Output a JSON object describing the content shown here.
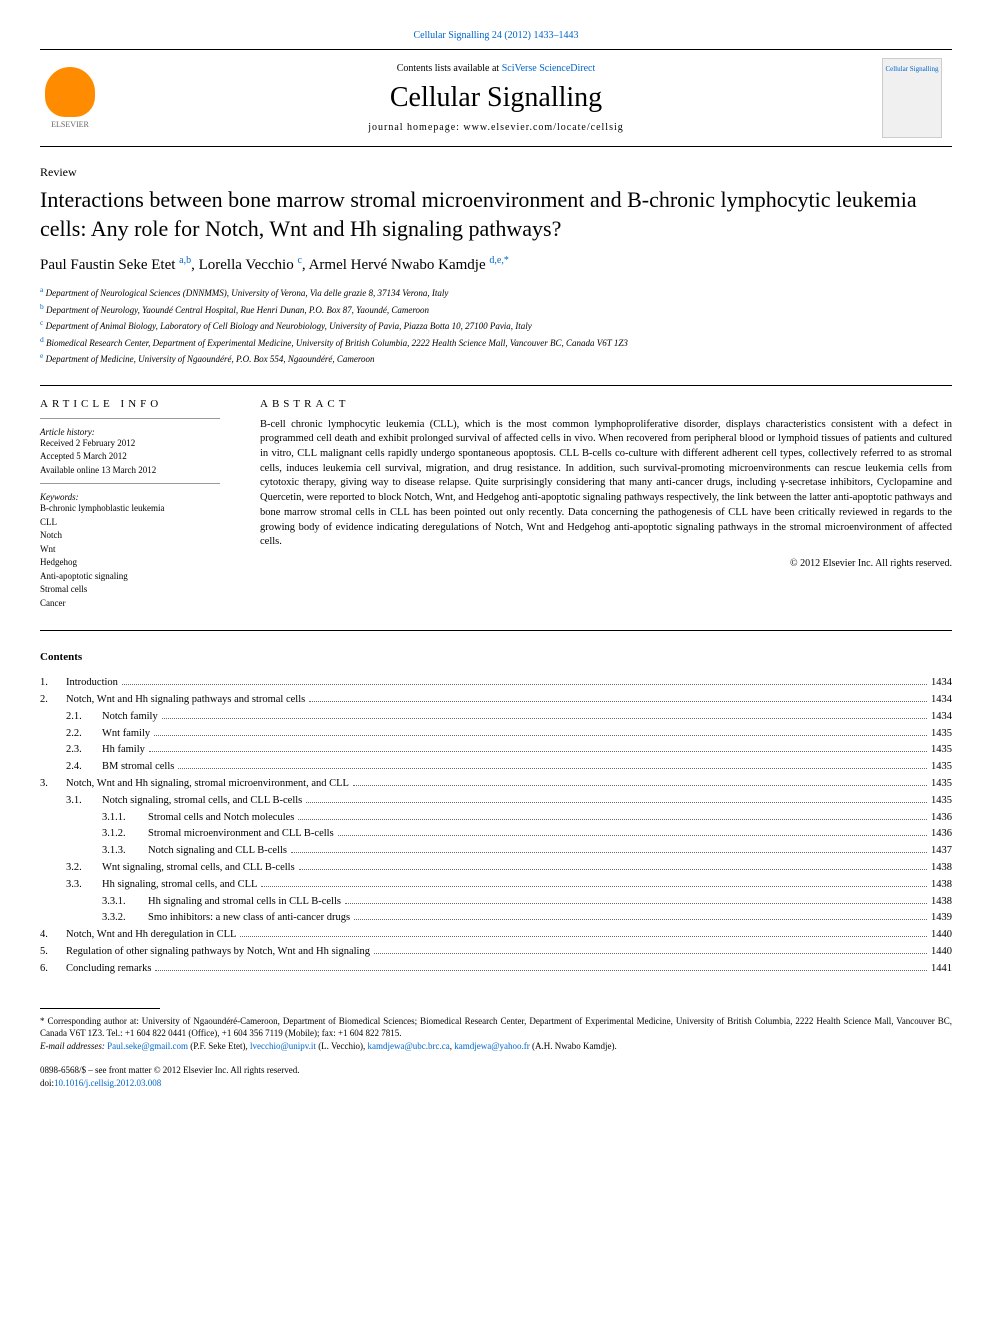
{
  "journal_ref": {
    "prefix": "Cellular Signalling 24 (2012) 1433–1443",
    "link_label": "Cellular Signalling"
  },
  "header": {
    "contents_prefix": "Contents lists available at ",
    "contents_link": "SciVerse ScienceDirect",
    "journal_name": "Cellular Signalling",
    "homepage": "journal homepage: www.elsevier.com/locate/cellsig",
    "elsevier_label": "ELSEVIER",
    "cover_label": "Cellular Signalling",
    "colors": {
      "link": "#0066cc",
      "text": "#000000",
      "elsevier_orange": "#ff8c00"
    }
  },
  "article": {
    "type": "Review",
    "title": "Interactions between bone marrow stromal microenvironment and B-chronic lymphocytic leukemia cells: Any role for Notch, Wnt and Hh signaling pathways?",
    "authors_html": "Paul Faustin Seke Etet <sup>a,b</sup>, Lorella Vecchio <sup>c</sup>, Armel Hervé Nwabo Kamdje <sup>d,e,*</sup>",
    "affiliations": [
      {
        "sup": "a",
        "text": "Department of Neurological Sciences (DNNMMS), University of Verona, Via delle grazie 8, 37134 Verona, Italy"
      },
      {
        "sup": "b",
        "text": "Department of Neurology, Yaoundé Central Hospital, Rue Henri Dunan, P.O. Box 87, Yaoundé, Cameroon"
      },
      {
        "sup": "c",
        "text": "Department of Animal Biology, Laboratory of Cell Biology and Neurobiology, University of Pavia, Piazza Botta 10, 27100 Pavia, Italy"
      },
      {
        "sup": "d",
        "text": "Biomedical Research Center, Department of Experimental Medicine, University of British Columbia, 2222 Health Science Mall, Vancouver BC, Canada V6T 1Z3"
      },
      {
        "sup": "e",
        "text": "Department of Medicine, University of Ngaoundéré, P.O. Box 554, Ngaoundéré, Cameroon"
      }
    ]
  },
  "info": {
    "heading": "ARTICLE INFO",
    "history_label": "Article history:",
    "history": [
      "Received 2 February 2012",
      "Accepted 5 March 2012",
      "Available online 13 March 2012"
    ],
    "keywords_label": "Keywords:",
    "keywords": [
      "B-chronic lymphoblastic leukemia",
      "CLL",
      "Notch",
      "Wnt",
      "Hedgehog",
      "Anti-apoptotic signaling",
      "Stromal cells",
      "Cancer"
    ]
  },
  "abstract": {
    "heading": "ABSTRACT",
    "text": "B-cell chronic lymphocytic leukemia (CLL), which is the most common lymphoproliferative disorder, displays characteristics consistent with a defect in programmed cell death and exhibit prolonged survival of affected cells in vivo. When recovered from peripheral blood or lymphoid tissues of patients and cultured in vitro, CLL malignant cells rapidly undergo spontaneous apoptosis. CLL B-cells co-culture with different adherent cell types, collectively referred to as stromal cells, induces leukemia cell survival, migration, and drug resistance. In addition, such survival-promoting microenvironments can rescue leukemia cells from cytotoxic therapy, giving way to disease relapse. Quite surprisingly considering that many anti-cancer drugs, including γ-secretase inhibitors, Cyclopamine and Quercetin, were reported to block Notch, Wnt, and Hedgehog anti-apoptotic signaling pathways respectively, the link between the latter anti-apoptotic pathways and bone marrow stromal cells in CLL has been pointed out only recently. Data concerning the pathogenesis of CLL have been critically reviewed in regards to the growing body of evidence indicating deregulations of Notch, Wnt and Hedgehog anti-apoptotic signaling pathways in the stromal microenvironment of affected cells.",
    "copyright": "© 2012 Elsevier Inc. All rights reserved."
  },
  "contents": {
    "heading": "Contents",
    "entries": [
      {
        "level": 1,
        "num": "1.",
        "title": "Introduction",
        "page": "1434"
      },
      {
        "level": 1,
        "num": "2.",
        "title": "Notch, Wnt and Hh signaling pathways and stromal cells",
        "page": "1434"
      },
      {
        "level": 2,
        "num": "2.1.",
        "title": "Notch family",
        "page": "1434"
      },
      {
        "level": 2,
        "num": "2.2.",
        "title": "Wnt family",
        "page": "1435"
      },
      {
        "level": 2,
        "num": "2.3.",
        "title": "Hh family",
        "page": "1435"
      },
      {
        "level": 2,
        "num": "2.4.",
        "title": "BM stromal cells",
        "page": "1435"
      },
      {
        "level": 1,
        "num": "3.",
        "title": "Notch, Wnt and Hh signaling, stromal microenvironment, and CLL",
        "page": "1435"
      },
      {
        "level": 2,
        "num": "3.1.",
        "title": "Notch signaling, stromal cells, and CLL B-cells",
        "page": "1435"
      },
      {
        "level": 3,
        "num": "3.1.1.",
        "title": "Stromal cells and Notch molecules",
        "page": "1436"
      },
      {
        "level": 3,
        "num": "3.1.2.",
        "title": "Stromal microenvironment and CLL B-cells",
        "page": "1436"
      },
      {
        "level": 3,
        "num": "3.1.3.",
        "title": "Notch signaling and CLL B-cells",
        "page": "1437"
      },
      {
        "level": 2,
        "num": "3.2.",
        "title": "Wnt signaling, stromal cells, and CLL B-cells",
        "page": "1438"
      },
      {
        "level": 2,
        "num": "3.3.",
        "title": "Hh signaling, stromal cells, and CLL",
        "page": "1438"
      },
      {
        "level": 3,
        "num": "3.3.1.",
        "title": "Hh signaling and stromal cells in CLL B-cells",
        "page": "1438"
      },
      {
        "level": 3,
        "num": "3.3.2.",
        "title": "Smo inhibitors: a new class of anti-cancer drugs",
        "page": "1439"
      },
      {
        "level": 1,
        "num": "4.",
        "title": "Notch, Wnt and Hh deregulation in CLL",
        "page": "1440"
      },
      {
        "level": 1,
        "num": "5.",
        "title": "Regulation of other signaling pathways by Notch, Wnt and Hh signaling",
        "page": "1440"
      },
      {
        "level": 1,
        "num": "6.",
        "title": "Concluding remarks",
        "page": "1441"
      }
    ]
  },
  "footnotes": {
    "corresponding": "* Corresponding author at: University of Ngaoundéré-Cameroon, Department of Biomedical Sciences; Biomedical Research Center, Department of Experimental Medicine, University of British Columbia, 2222 Health Science Mall, Vancouver BC, Canada V6T 1Z3. Tel.: +1 604 822 0441 (Office), +1 604 356 7119 (Mobile); fax: +1 604 822 7815.",
    "email_label": "E-mail addresses: ",
    "emails": [
      {
        "addr": "Paul.seke@gmail.com",
        "who": " (P.F. Seke Etet), "
      },
      {
        "addr": "lvecchio@unipv.it",
        "who": " (L. Vecchio), "
      },
      {
        "addr": "kamdjewa@ubc.brc.ca",
        "who": ", "
      },
      {
        "addr": "kamdjewa@yahoo.fr",
        "who": " (A.H. Nwabo Kamdje)."
      }
    ]
  },
  "bottom": {
    "issn": "0898-6568/$ – see front matter © 2012 Elsevier Inc. All rights reserved.",
    "doi_label": "doi:",
    "doi": "10.1016/j.cellsig.2012.03.008"
  }
}
